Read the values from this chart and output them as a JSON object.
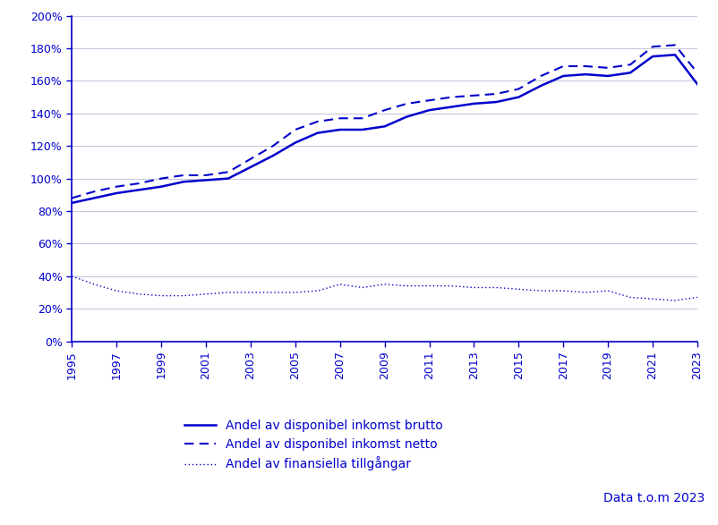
{
  "years": [
    1995,
    1996,
    1997,
    1998,
    1999,
    2000,
    2001,
    2002,
    2003,
    2004,
    2005,
    2006,
    2007,
    2008,
    2009,
    2010,
    2011,
    2012,
    2013,
    2014,
    2015,
    2016,
    2017,
    2018,
    2019,
    2020,
    2021,
    2022,
    2023
  ],
  "brutto": [
    0.85,
    0.88,
    0.91,
    0.93,
    0.95,
    0.98,
    0.99,
    1.0,
    1.07,
    1.14,
    1.22,
    1.28,
    1.3,
    1.3,
    1.32,
    1.38,
    1.42,
    1.44,
    1.46,
    1.47,
    1.5,
    1.57,
    1.63,
    1.64,
    1.63,
    1.65,
    1.75,
    1.76,
    1.58
  ],
  "netto": [
    0.88,
    0.92,
    0.95,
    0.97,
    1.0,
    1.02,
    1.02,
    1.04,
    1.12,
    1.2,
    1.3,
    1.35,
    1.37,
    1.37,
    1.42,
    1.46,
    1.48,
    1.5,
    1.51,
    1.52,
    1.55,
    1.63,
    1.69,
    1.69,
    1.68,
    1.7,
    1.81,
    1.82,
    1.65
  ],
  "finansiella": [
    0.4,
    0.35,
    0.31,
    0.29,
    0.28,
    0.28,
    0.29,
    0.3,
    0.3,
    0.3,
    0.3,
    0.31,
    0.35,
    0.33,
    0.35,
    0.34,
    0.34,
    0.34,
    0.33,
    0.33,
    0.32,
    0.31,
    0.31,
    0.3,
    0.31,
    0.27,
    0.26,
    0.25,
    0.27
  ],
  "color": "#0000CC",
  "ylim": [
    0.0,
    2.0
  ],
  "yticks": [
    0.0,
    0.2,
    0.4,
    0.6,
    0.8,
    1.0,
    1.2,
    1.4,
    1.6,
    1.8,
    2.0
  ],
  "legend_brutto": "Andel av disponibel inkomst brutto",
  "legend_netto": "Andel av disponibel inkomst netto",
  "legend_finansiella": "Andel av finansiella tillgångar",
  "annotation": "Data t.o.m 2023",
  "background_color": "#ffffff",
  "grid_color": "#c8c8dc"
}
